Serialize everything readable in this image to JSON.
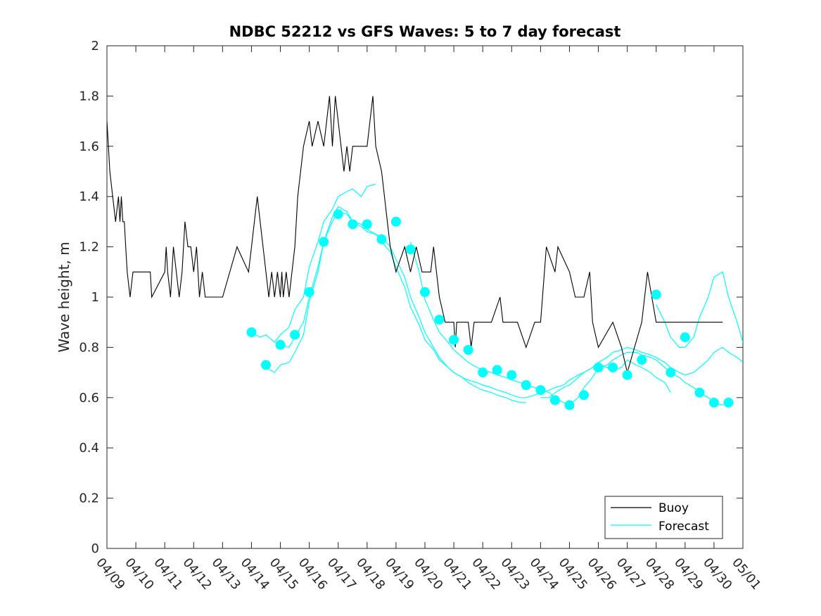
{
  "chart_data": {
    "type": "line",
    "title": "NDBC 52212 vs GFS Waves: 5 to 7 day forecast",
    "ylabel": "Wave height, m",
    "xlabel": "",
    "ylim": [
      0,
      2
    ],
    "yticks": [
      0,
      0.2,
      0.4,
      0.6,
      0.8,
      1,
      1.2,
      1.4,
      1.6,
      1.8,
      2
    ],
    "ytick_labels": [
      "0",
      "0.2",
      "0.4",
      "0.6",
      "0.8",
      "1",
      "1.2",
      "1.4",
      "1.6",
      "1.8",
      "2"
    ],
    "xlim": [
      "04/09",
      "05/01"
    ],
    "xtick_labels": [
      "04/09",
      "04/10",
      "04/11",
      "04/12",
      "04/13",
      "04/14",
      "04/15",
      "04/16",
      "04/17",
      "04/18",
      "04/19",
      "04/20",
      "04/21",
      "04/22",
      "04/23",
      "04/24",
      "04/25",
      "04/26",
      "04/27",
      "04/28",
      "04/29",
      "04/30",
      "05/01"
    ],
    "grid": false,
    "legend": {
      "position": "bottom-right",
      "entries": [
        "Buoy",
        "Forecast"
      ]
    },
    "colors": {
      "buoy": "#000000",
      "forecast": "#00ffff"
    },
    "buoy": {
      "name": "Buoy",
      "x": [
        0.0,
        0.05,
        0.1,
        0.2,
        0.3,
        0.4,
        0.45,
        0.5,
        0.55,
        0.6,
        0.65,
        0.7,
        0.8,
        0.9,
        1.0,
        1.5,
        1.55,
        2.0,
        2.05,
        2.1,
        2.2,
        2.3,
        2.4,
        2.5,
        2.6,
        2.7,
        2.8,
        2.9,
        3.0,
        3.1,
        3.2,
        3.3,
        3.4,
        3.5,
        4.0,
        4.5,
        4.9,
        5.0,
        5.2,
        5.4,
        5.5,
        5.6,
        5.7,
        5.8,
        5.9,
        6.0,
        6.05,
        6.1,
        6.2,
        6.3,
        6.4,
        6.5,
        6.6,
        6.8,
        7.0,
        7.1,
        7.3,
        7.5,
        7.7,
        7.75,
        7.8,
        7.9,
        8.0,
        8.2,
        8.3,
        8.4,
        8.5,
        8.6,
        8.7,
        8.8,
        9.0,
        9.1,
        9.2,
        9.3,
        9.5,
        9.8,
        10.0,
        10.3,
        10.5,
        10.7,
        10.9,
        11.2,
        11.3,
        11.5,
        11.7,
        11.9,
        12.0,
        12.05,
        12.1,
        12.5,
        12.6,
        12.7,
        13.0,
        13.3,
        13.6,
        13.7,
        13.9,
        14.2,
        14.5,
        14.8,
        14.9,
        15.0,
        15.2,
        15.5,
        15.6,
        16.0,
        16.2,
        16.5,
        16.7,
        16.8,
        17.0,
        17.5,
        17.8,
        18.0,
        18.5,
        18.7,
        19.0,
        19.3,
        19.6,
        19.8,
        20.0,
        20.3,
        20.6,
        20.8,
        21.0,
        21.1,
        21.2,
        21.3
      ],
      "y": [
        1.7,
        1.6,
        1.5,
        1.4,
        1.3,
        1.4,
        1.3,
        1.4,
        1.3,
        1.3,
        1.2,
        1.1,
        1.0,
        1.1,
        1.1,
        1.1,
        1.0,
        1.1,
        1.2,
        1.1,
        1.0,
        1.2,
        1.1,
        1.0,
        1.1,
        1.3,
        1.2,
        1.2,
        1.1,
        1.2,
        1.0,
        1.1,
        1.0,
        1.0,
        1.0,
        1.2,
        1.1,
        1.2,
        1.4,
        1.2,
        1.1,
        1.0,
        1.1,
        1.0,
        1.1,
        1.0,
        1.1,
        1.0,
        1.1,
        1.0,
        1.1,
        1.2,
        1.4,
        1.6,
        1.7,
        1.6,
        1.7,
        1.6,
        1.8,
        1.7,
        1.6,
        1.8,
        1.7,
        1.5,
        1.6,
        1.5,
        1.6,
        1.6,
        1.6,
        1.6,
        1.6,
        1.7,
        1.8,
        1.6,
        1.5,
        1.2,
        1.1,
        1.2,
        1.1,
        1.2,
        1.1,
        1.1,
        1.2,
        1.0,
        0.9,
        0.9,
        0.9,
        0.8,
        0.9,
        0.9,
        0.8,
        0.9,
        0.9,
        0.9,
        1.0,
        0.9,
        0.9,
        0.9,
        0.8,
        0.9,
        0.9,
        0.9,
        1.2,
        1.1,
        1.2,
        1.1,
        1.0,
        1.0,
        1.1,
        0.9,
        0.8,
        0.9,
        0.8,
        0.7,
        0.9,
        1.1,
        0.9,
        0.9,
        0.9,
        0.9,
        0.9,
        0.9,
        0.9,
        0.9,
        0.9,
        0.9,
        0.9,
        0.9
      ]
    },
    "forecast": {
      "name": "Forecast",
      "dots": {
        "x": [
          5.0,
          5.5,
          6.0,
          6.5,
          7.0,
          7.5,
          8.0,
          8.5,
          9.0,
          9.5,
          10.0,
          10.5,
          11.0,
          11.5,
          12.0,
          12.5,
          13.0,
          13.5,
          14.0,
          14.5,
          15.0,
          15.5,
          16.0,
          16.5,
          17.0,
          17.5,
          18.0,
          18.5,
          19.0,
          19.5,
          20.0,
          20.5,
          21.0,
          21.5
        ],
        "y": [
          0.86,
          0.73,
          0.81,
          0.85,
          1.02,
          1.22,
          1.33,
          1.29,
          1.29,
          1.23,
          1.3,
          1.19,
          1.02,
          0.91,
          0.83,
          0.79,
          0.7,
          0.71,
          0.69,
          0.65,
          0.63,
          0.59,
          0.57,
          0.61,
          0.72,
          0.72,
          0.69,
          0.75,
          1.01,
          0.7,
          0.84,
          0.62,
          0.58,
          0.58
        ]
      },
      "runs": [
        {
          "x": [
            5.0,
            5.3,
            5.5,
            5.8,
            6.0,
            6.3,
            6.5,
            6.8,
            7.0,
            7.3,
            7.5,
            7.8,
            8.0,
            8.3,
            8.5,
            8.8,
            9.0,
            9.3
          ],
          "y": [
            0.86,
            0.84,
            0.85,
            0.82,
            0.85,
            0.88,
            0.95,
            1.0,
            1.12,
            1.22,
            1.3,
            1.35,
            1.4,
            1.42,
            1.43,
            1.4,
            1.44,
            1.45
          ]
        },
        {
          "x": [
            5.5,
            5.8,
            6.0,
            6.3,
            6.5,
            6.8,
            7.0,
            7.3,
            7.5,
            7.8,
            8.0,
            8.3,
            8.5,
            8.8,
            9.0,
            9.3,
            9.5,
            9.8,
            10.0,
            10.3,
            10.5,
            10.8,
            11.0,
            11.3,
            11.5,
            11.8,
            12.0,
            12.3,
            12.5,
            12.8,
            13.0,
            13.3,
            13.5,
            13.8,
            14.0,
            14.3,
            14.5
          ],
          "y": [
            0.72,
            0.7,
            0.73,
            0.74,
            0.78,
            0.85,
            0.98,
            1.1,
            1.22,
            1.32,
            1.36,
            1.34,
            1.3,
            1.29,
            1.27,
            1.25,
            1.24,
            1.2,
            1.15,
            1.08,
            1.0,
            0.92,
            0.86,
            0.8,
            0.76,
            0.72,
            0.7,
            0.68,
            0.66,
            0.64,
            0.63,
            0.62,
            0.61,
            0.6,
            0.59,
            0.58,
            0.58
          ]
        },
        {
          "x": [
            6.0,
            6.3,
            6.5,
            6.8,
            7.0,
            7.3,
            7.5,
            7.8,
            8.0,
            8.3,
            8.5,
            8.8,
            9.0,
            9.3,
            9.5,
            9.8,
            10.0,
            10.3,
            10.5,
            10.8,
            11.0,
            11.3,
            11.5,
            11.8,
            12.0,
            12.3,
            12.5,
            12.8,
            13.0,
            13.3,
            13.5,
            13.8,
            14.0,
            14.3,
            14.5,
            14.8,
            15.0,
            15.3,
            15.5,
            15.8,
            16.0,
            16.3,
            16.5,
            16.8,
            17.0,
            17.3,
            17.5,
            17.8,
            18.0,
            18.3,
            18.5,
            18.8,
            19.0,
            19.3,
            19.5
          ],
          "y": [
            0.81,
            0.8,
            0.84,
            0.9,
            1.0,
            1.12,
            1.22,
            1.3,
            1.34,
            1.33,
            1.3,
            1.28,
            1.26,
            1.25,
            1.22,
            1.18,
            1.12,
            1.04,
            0.96,
            0.89,
            0.83,
            0.79,
            0.75,
            0.72,
            0.7,
            0.68,
            0.67,
            0.66,
            0.65,
            0.64,
            0.63,
            0.62,
            0.61,
            0.6,
            0.6,
            0.61,
            0.62,
            0.63,
            0.64,
            0.65,
            0.67,
            0.69,
            0.7,
            0.72,
            0.73,
            0.72,
            0.71,
            0.72,
            0.75,
            0.73,
            0.72,
            0.7,
            0.68,
            0.66,
            0.62
          ]
        },
        {
          "x": [
            10.5,
            10.8,
            11.0,
            11.3,
            11.5,
            11.8,
            12.0,
            12.3,
            12.5,
            12.8,
            13.0,
            13.3,
            13.5,
            13.8,
            14.0,
            14.3,
            14.5,
            14.8,
            15.0,
            15.3,
            15.5,
            15.8,
            16.0,
            16.3,
            16.5,
            16.8,
            17.0,
            17.3,
            17.5,
            17.8,
            18.0,
            18.3,
            18.5,
            18.8,
            19.0,
            19.3,
            19.5,
            19.8,
            20.0,
            20.3,
            20.5,
            20.8,
            21.0,
            21.3,
            21.5
          ],
          "y": [
            1.22,
            1.1,
            0.99,
            0.91,
            0.86,
            0.82,
            0.79,
            0.76,
            0.74,
            0.72,
            0.71,
            0.7,
            0.69,
            0.68,
            0.67,
            0.66,
            0.65,
            0.64,
            0.63,
            0.62,
            0.6,
            0.58,
            0.57,
            0.6,
            0.64,
            0.68,
            0.72,
            0.73,
            0.75,
            0.77,
            0.78,
            0.78,
            0.77,
            0.76,
            0.75,
            0.72,
            0.7,
            0.68,
            0.66,
            0.64,
            0.62,
            0.6,
            0.58,
            0.57,
            0.58
          ]
        },
        {
          "x": [
            15.0,
            15.3,
            15.5,
            15.8,
            16.0,
            16.3,
            16.5,
            16.8,
            17.0,
            17.3,
            17.5,
            17.8,
            18.0,
            18.3,
            18.5,
            18.8,
            19.0,
            19.3,
            19.5,
            19.8,
            20.0,
            20.3,
            20.5,
            20.8,
            21.0,
            21.3,
            21.5,
            21.8,
            22.0
          ],
          "y": [
            0.6,
            0.6,
            0.62,
            0.64,
            0.65,
            0.68,
            0.7,
            0.72,
            0.74,
            0.76,
            0.78,
            0.79,
            0.8,
            0.79,
            0.78,
            0.77,
            0.76,
            0.74,
            0.72,
            0.7,
            0.69,
            0.7,
            0.72,
            0.75,
            0.78,
            0.8,
            0.78,
            0.76,
            0.74
          ]
        },
        {
          "x": [
            19.0,
            19.3,
            19.5,
            19.8,
            20.0,
            20.3,
            20.5,
            20.8,
            21.0,
            21.3,
            21.5,
            21.8,
            22.0
          ],
          "y": [
            0.97,
            0.9,
            0.84,
            0.8,
            0.8,
            0.84,
            0.92,
            1.0,
            1.08,
            1.1,
            1.0,
            0.9,
            0.82
          ]
        }
      ]
    }
  }
}
